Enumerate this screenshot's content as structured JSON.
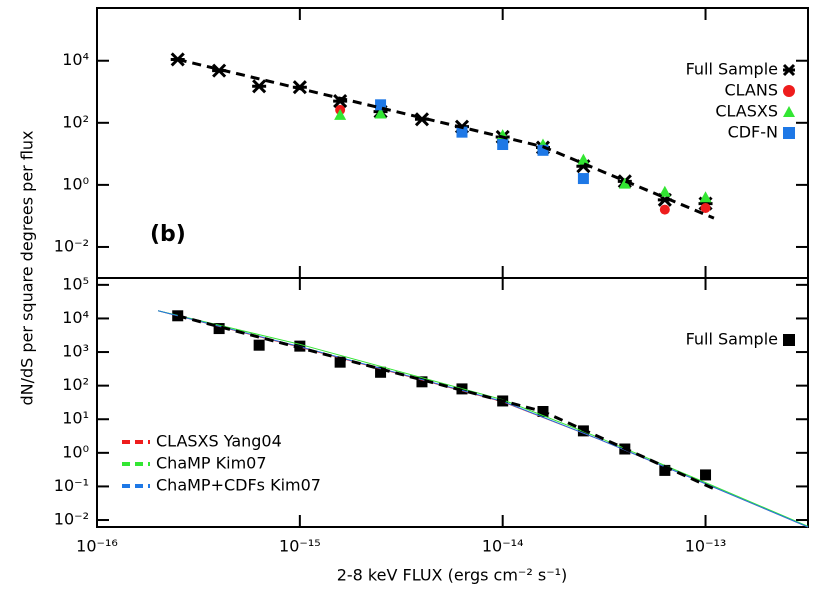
{
  "chart_data": [
    {
      "type": "scatter",
      "log_x": true,
      "log_y": true,
      "annotation": "(b)",
      "ylabel": "dN/dS per square degrees per flux",
      "xlim": [
        1e-16,
        3.2e-13
      ],
      "ylim": [
        0.001,
        500000
      ],
      "yticks": [
        {
          "value": 10000,
          "label": "10⁴"
        },
        {
          "value": 100,
          "label": "10²"
        },
        {
          "value": 1,
          "label": "10⁰"
        },
        {
          "value": 0.01,
          "label": "10⁻²"
        }
      ],
      "legend": "upper right",
      "series": [
        {
          "name": "Full Sample",
          "color": "#000000",
          "marker": "asterisk",
          "x": [
            2.5e-16,
            4e-16,
            6.3e-16,
            1e-15,
            1.58e-15,
            2.5e-15,
            4e-15,
            6.3e-15,
            1e-14,
            1.58e-14,
            2.5e-14,
            4e-14,
            6.3e-14,
            1e-13
          ],
          "values": [
            11000,
            4800,
            1500,
            1400,
            500,
            230,
            130,
            75,
            35,
            16,
            4,
            1.3,
            0.33,
            0.25
          ]
        },
        {
          "name": "CLANS",
          "color": "#ee1c1c",
          "marker": "circle",
          "x": [
            1.58e-15,
            6.3e-14,
            1e-13
          ],
          "values": [
            260,
            0.16,
            0.18
          ]
        },
        {
          "name": "CLASXS",
          "color": "#33e633",
          "marker": "triangle",
          "x": [
            1.58e-15,
            2.5e-15,
            1e-14,
            1.58e-14,
            2.5e-14,
            4e-14,
            6.3e-14,
            1e-13
          ],
          "values": [
            180,
            200,
            40,
            20,
            6.5,
            1.1,
            0.6,
            0.4
          ]
        },
        {
          "name": "CDF-N",
          "color": "#1e78e6",
          "marker": "square",
          "x": [
            2.5e-15,
            6.3e-15,
            1e-14,
            1.58e-14,
            2.5e-14
          ],
          "values": [
            380,
            50,
            20,
            13,
            1.6
          ]
        },
        {
          "color": "#000000",
          "line": "dashed",
          "x": [
            2.5e-16,
            1.58e-14,
            1.1e-13
          ],
          "values": [
            11000,
            17,
            0.085
          ]
        }
      ]
    },
    {
      "type": "scatter",
      "log_x": true,
      "log_y": true,
      "xlabel": "2-8 keV FLUX (ergs cm⁻² s⁻¹)",
      "xlim": [
        1e-16,
        3.2e-13
      ],
      "ylim": [
        0.0062,
        160000
      ],
      "xticks": [
        {
          "value": 1e-16,
          "label": "10⁻¹⁶"
        },
        {
          "value": 1e-15,
          "label": "10⁻¹⁵"
        },
        {
          "value": 1e-14,
          "label": "10⁻¹⁴"
        },
        {
          "value": 1e-13,
          "label": "10⁻¹³"
        }
      ],
      "yticks": [
        {
          "value": 100000,
          "label": "10⁵"
        },
        {
          "value": 10000,
          "label": "10⁴"
        },
        {
          "value": 1000,
          "label": "10³"
        },
        {
          "value": 100,
          "label": "10²"
        },
        {
          "value": 10,
          "label": "10¹"
        },
        {
          "value": 1,
          "label": "10⁰"
        },
        {
          "value": 0.1,
          "label": "10⁻¹"
        },
        {
          "value": 0.01,
          "label": "10⁻²"
        }
      ],
      "series": [
        {
          "name": "Full Sample",
          "color": "#000000",
          "marker": "square",
          "x": [
            2.5e-16,
            4e-16,
            6.3e-16,
            1e-15,
            1.58e-15,
            2.5e-15,
            4e-15,
            6.3e-15,
            1e-14,
            1.58e-14,
            2.5e-14,
            4e-14,
            6.3e-14,
            1e-13
          ],
          "values": [
            12000,
            5000,
            1600,
            1500,
            500,
            250,
            130,
            80,
            35,
            17,
            4.5,
            1.3,
            0.3,
            0.22
          ]
        },
        {
          "name": "CLASXS Yang04",
          "color": "#ee1c1c",
          "line": "solid",
          "x": [
            2e-16,
            1e-15,
            1e-14,
            3e-14,
            1e-13,
            3.2e-13
          ],
          "values": [
            17000,
            1400,
            33,
            2.5,
            0.12,
            0.0062
          ]
        },
        {
          "name": "ChaMP Kim07",
          "color": "#33e633",
          "line": "solid",
          "x": [
            2e-16,
            1e-15,
            1e-14,
            3e-14,
            1e-13,
            3.2e-13
          ],
          "values": [
            17000,
            1700,
            38,
            2.8,
            0.13,
            0.0065
          ]
        },
        {
          "name": "ChaMP+CDFs Kim07",
          "color": "#1e78e6",
          "line": "solid",
          "x": [
            2e-16,
            1e-15,
            1e-14,
            3e-14,
            1e-13,
            3.2e-13
          ],
          "values": [
            17000,
            1450,
            34,
            2.5,
            0.12,
            0.0062
          ]
        },
        {
          "color": "#000000",
          "line": "dashed",
          "x": [
            2.5e-16,
            1.58e-14,
            1.1e-13
          ],
          "values": [
            12000,
            17,
            0.085
          ]
        }
      ]
    }
  ]
}
